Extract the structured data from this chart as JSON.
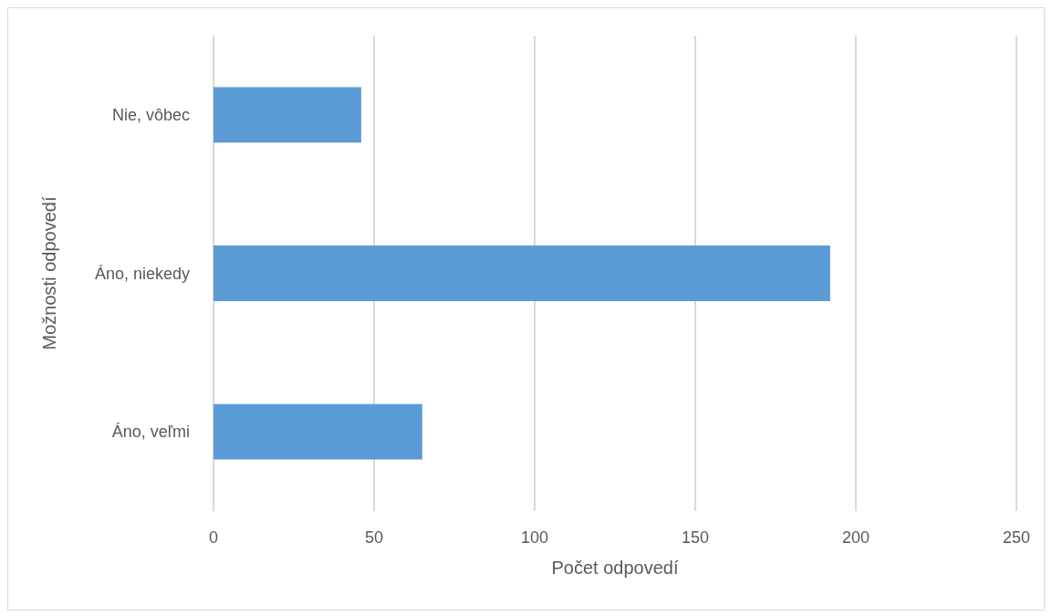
{
  "chart_data": {
    "type": "bar",
    "orientation": "horizontal",
    "xlabel": "Počet odpovedí",
    "ylabel": "Možnosti odpovedí",
    "categories": [
      "Nie, vôbec",
      "Áno, niekedy",
      "Áno, veľmi"
    ],
    "values": [
      46,
      192,
      65
    ],
    "color": "#5b9bd5",
    "xlim": [
      0,
      250
    ],
    "xticks": [
      0,
      50,
      100,
      150,
      200,
      250
    ],
    "grid": "x"
  }
}
